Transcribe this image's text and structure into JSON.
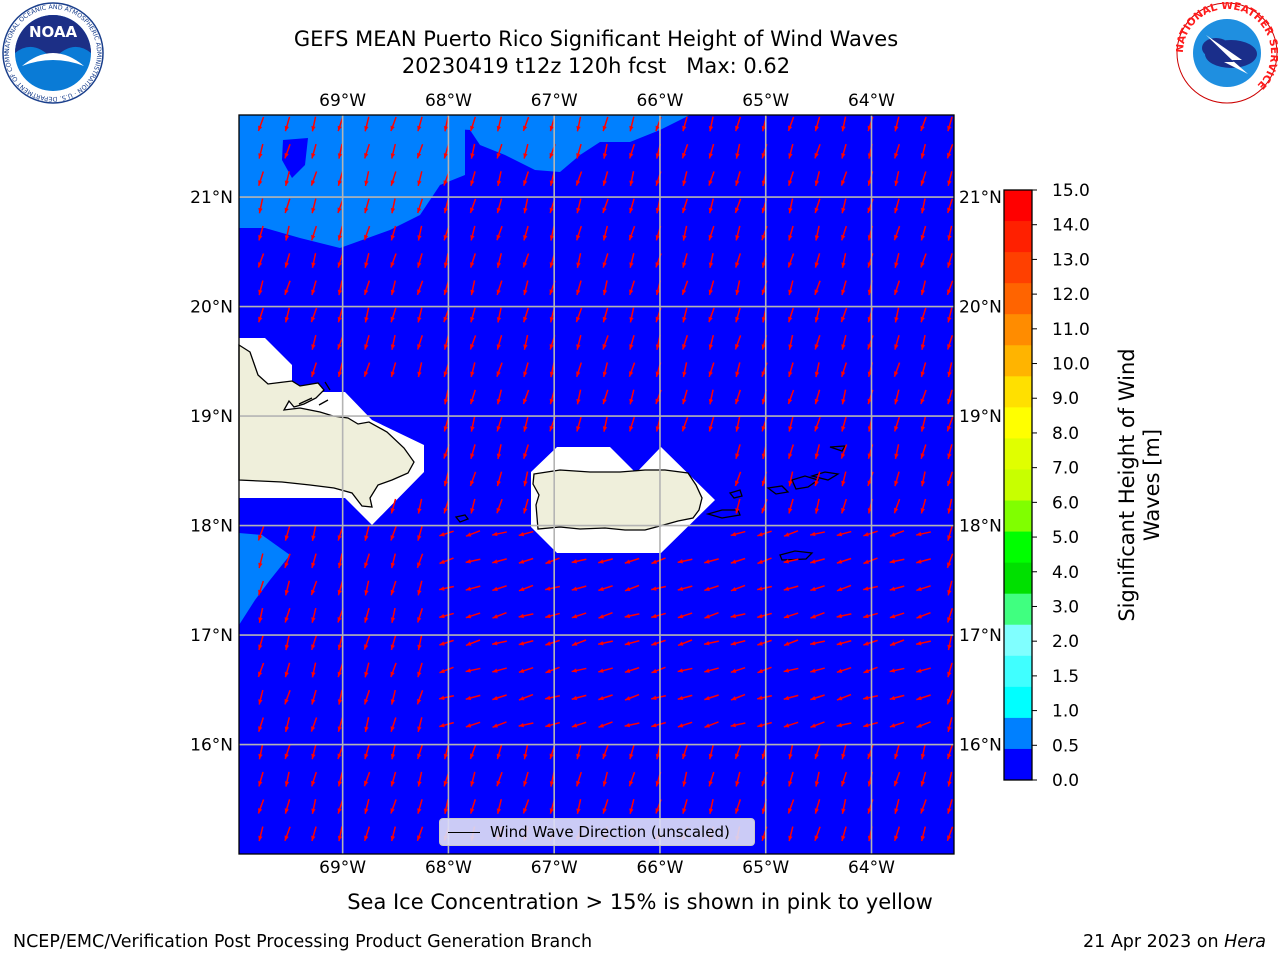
{
  "header": {
    "title_line1": "GEFS MEAN Puerto Rico Significant Height of Wind Waves",
    "title_line2": "20230419 t12z 120h fcst   Max: 0.62"
  },
  "logos": {
    "noaa": "NOAA",
    "noaa_ring": "NATIONAL OCEANIC AND ATMOSPHERIC ADMINISTRATION · U.S. DEPARTMENT OF COMMERCE",
    "nws_ring": "NATIONAL WEATHER SERVICE"
  },
  "map": {
    "lon_ticks": [
      "69°W",
      "68°W",
      "67°W",
      "66°W",
      "65°W",
      "64°W"
    ],
    "lat_ticks": [
      "21°N",
      "20°N",
      "19°N",
      "18°N",
      "17°N",
      "16°N"
    ],
    "lon_range": [
      -69.98,
      -63.22
    ],
    "lat_range": [
      15.0,
      21.75
    ],
    "legend_label": "Wind Wave Direction (unscaled)",
    "ocean_color": "#0000ff",
    "low_wave_color": "#0080ff",
    "land_color": "#efefdb",
    "arrow_color": "#ff0000"
  },
  "colorbar": {
    "label": "Significant Height of Wind Waves [m]",
    "levels": [
      "15.0",
      "14.0",
      "13.0",
      "12.0",
      "11.0",
      "10.0",
      "9.0",
      "8.0",
      "7.0",
      "6.0",
      "5.0",
      "4.0",
      "3.0",
      "2.0",
      "1.5",
      "1.0",
      "0.5",
      "0.0"
    ],
    "colors": [
      "#ff0000",
      "#ff2000",
      "#ff4000",
      "#ff6400",
      "#ff8c00",
      "#ffb400",
      "#ffe000",
      "#ffff00",
      "#e0ff00",
      "#c8ff00",
      "#80ff00",
      "#00ff00",
      "#00e000",
      "#40ff80",
      "#80ffff",
      "#40ffff",
      "#00ffff",
      "#0080ff",
      "#0000ff"
    ]
  },
  "caption": "Sea Ice Concentration > 15% is shown in pink to yellow",
  "footer": {
    "left": "NCEP/EMC/Verification Post Processing Product Generation Branch",
    "right_date": "21 Apr 2023 on ",
    "right_host": "Hera"
  }
}
